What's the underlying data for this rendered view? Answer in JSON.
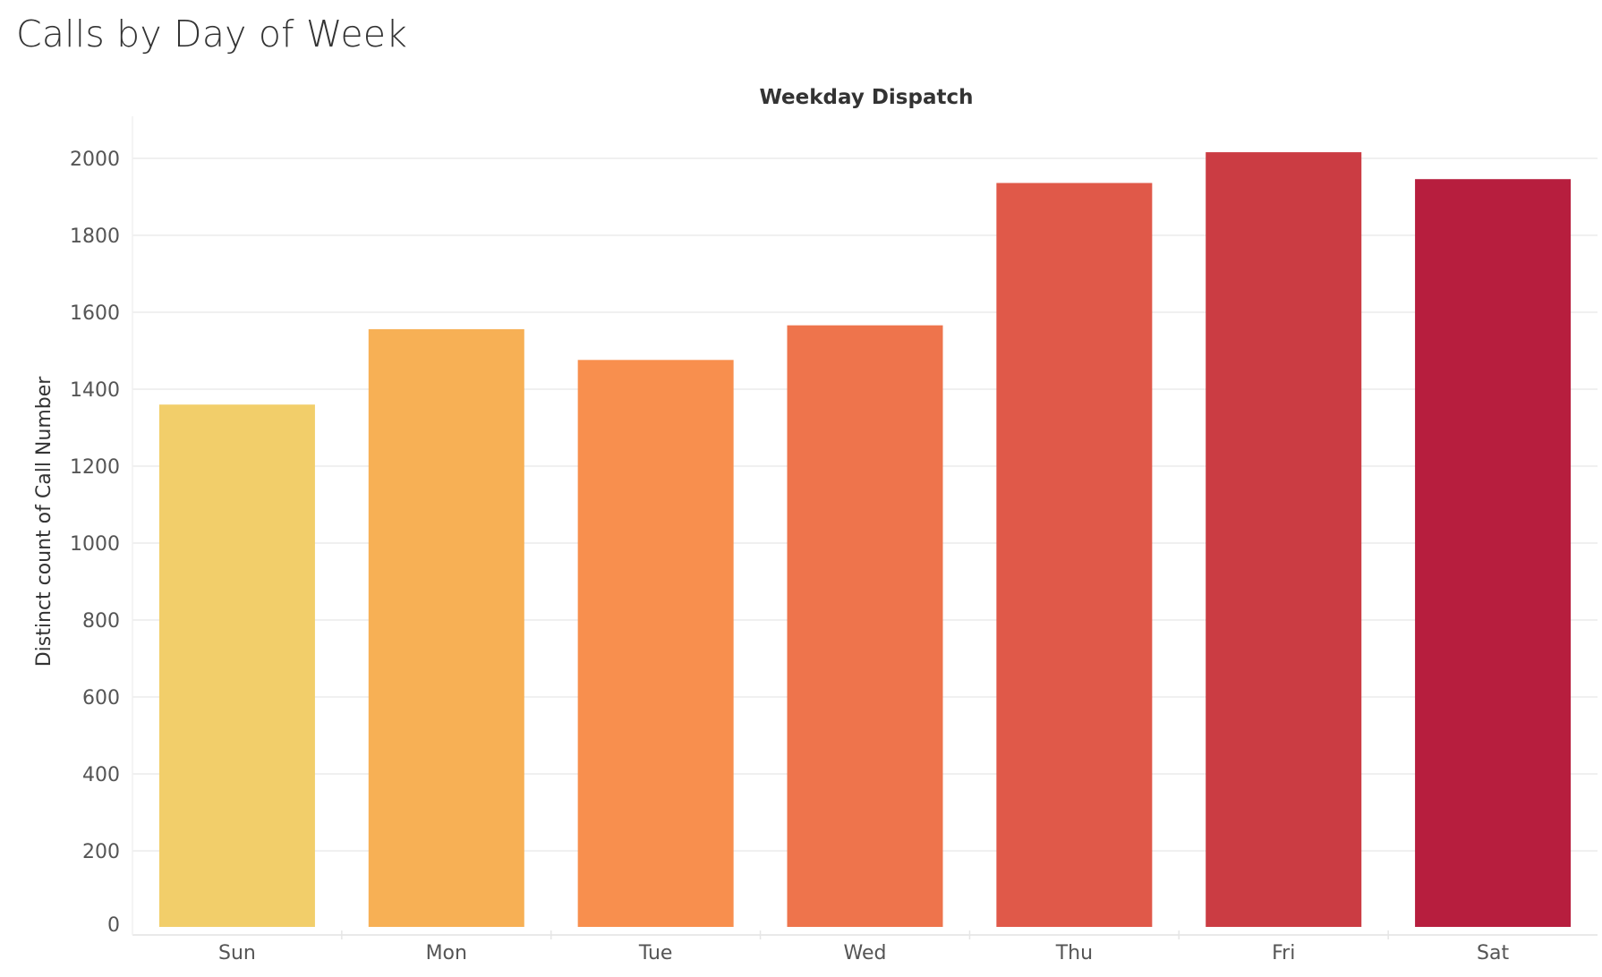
{
  "page": {
    "title": "Calls by Day of Week"
  },
  "chart_data": {
    "type": "bar",
    "title": "Weekday Dispatch",
    "xlabel": "",
    "ylabel": "Distinct count of Call Number",
    "categories": [
      "Sun",
      "Mon",
      "Tue",
      "Wed",
      "Thu",
      "Fri",
      "Sat"
    ],
    "values": [
      1360,
      1556,
      1476,
      1566,
      1936,
      2016,
      1946
    ],
    "colors": [
      "#F2CE6A",
      "#F7B055",
      "#F88F4E",
      "#EE744C",
      "#E05949",
      "#CB3C43",
      "#B71E3E"
    ],
    "ylim": [
      0,
      2100
    ],
    "yticks": [
      0,
      200,
      400,
      600,
      800,
      1000,
      1200,
      1400,
      1600,
      1800,
      2000
    ],
    "grid": true,
    "legend": "none"
  }
}
